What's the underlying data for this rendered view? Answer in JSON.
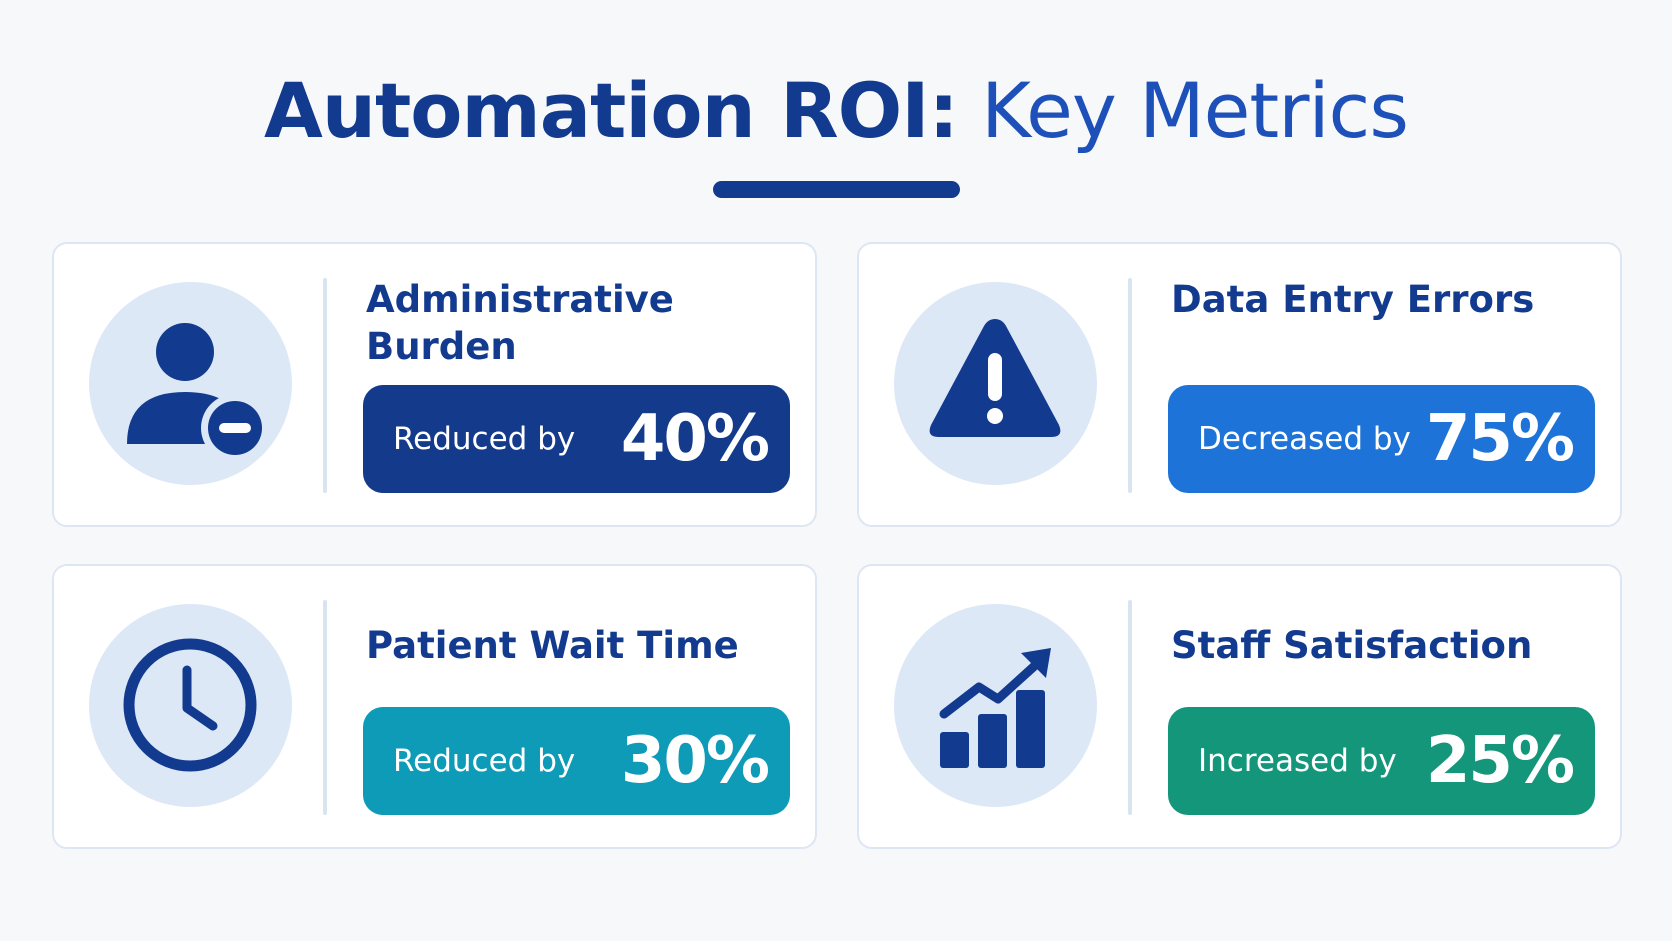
{
  "header": {
    "title_bold": "Automation ROI:",
    "title_regular": "Key Metrics"
  },
  "colors": {
    "navy": "#123a8f",
    "blue": "#1e73d8",
    "teal": "#0e9bb8",
    "green": "#14967a",
    "icon_bg": "#dde8f7"
  },
  "metrics": [
    {
      "title": "Administrative Burden",
      "label": "Reduced by",
      "value": "40%",
      "icon": "user-minus-icon",
      "pill_color": "#143a8c"
    },
    {
      "title": "Data Entry Errors",
      "label": "Decreased by",
      "value": "75%",
      "icon": "warning-triangle-icon",
      "pill_color": "#1e73d8"
    },
    {
      "title": "Patient Wait Time",
      "label": "Reduced by",
      "value": "30%",
      "icon": "clock-icon",
      "pill_color": "#0e9bb8"
    },
    {
      "title": "Staff Satisfaction",
      "label": "Increased by",
      "value": "25%",
      "icon": "growth-chart-icon",
      "pill_color": "#14967a"
    }
  ]
}
